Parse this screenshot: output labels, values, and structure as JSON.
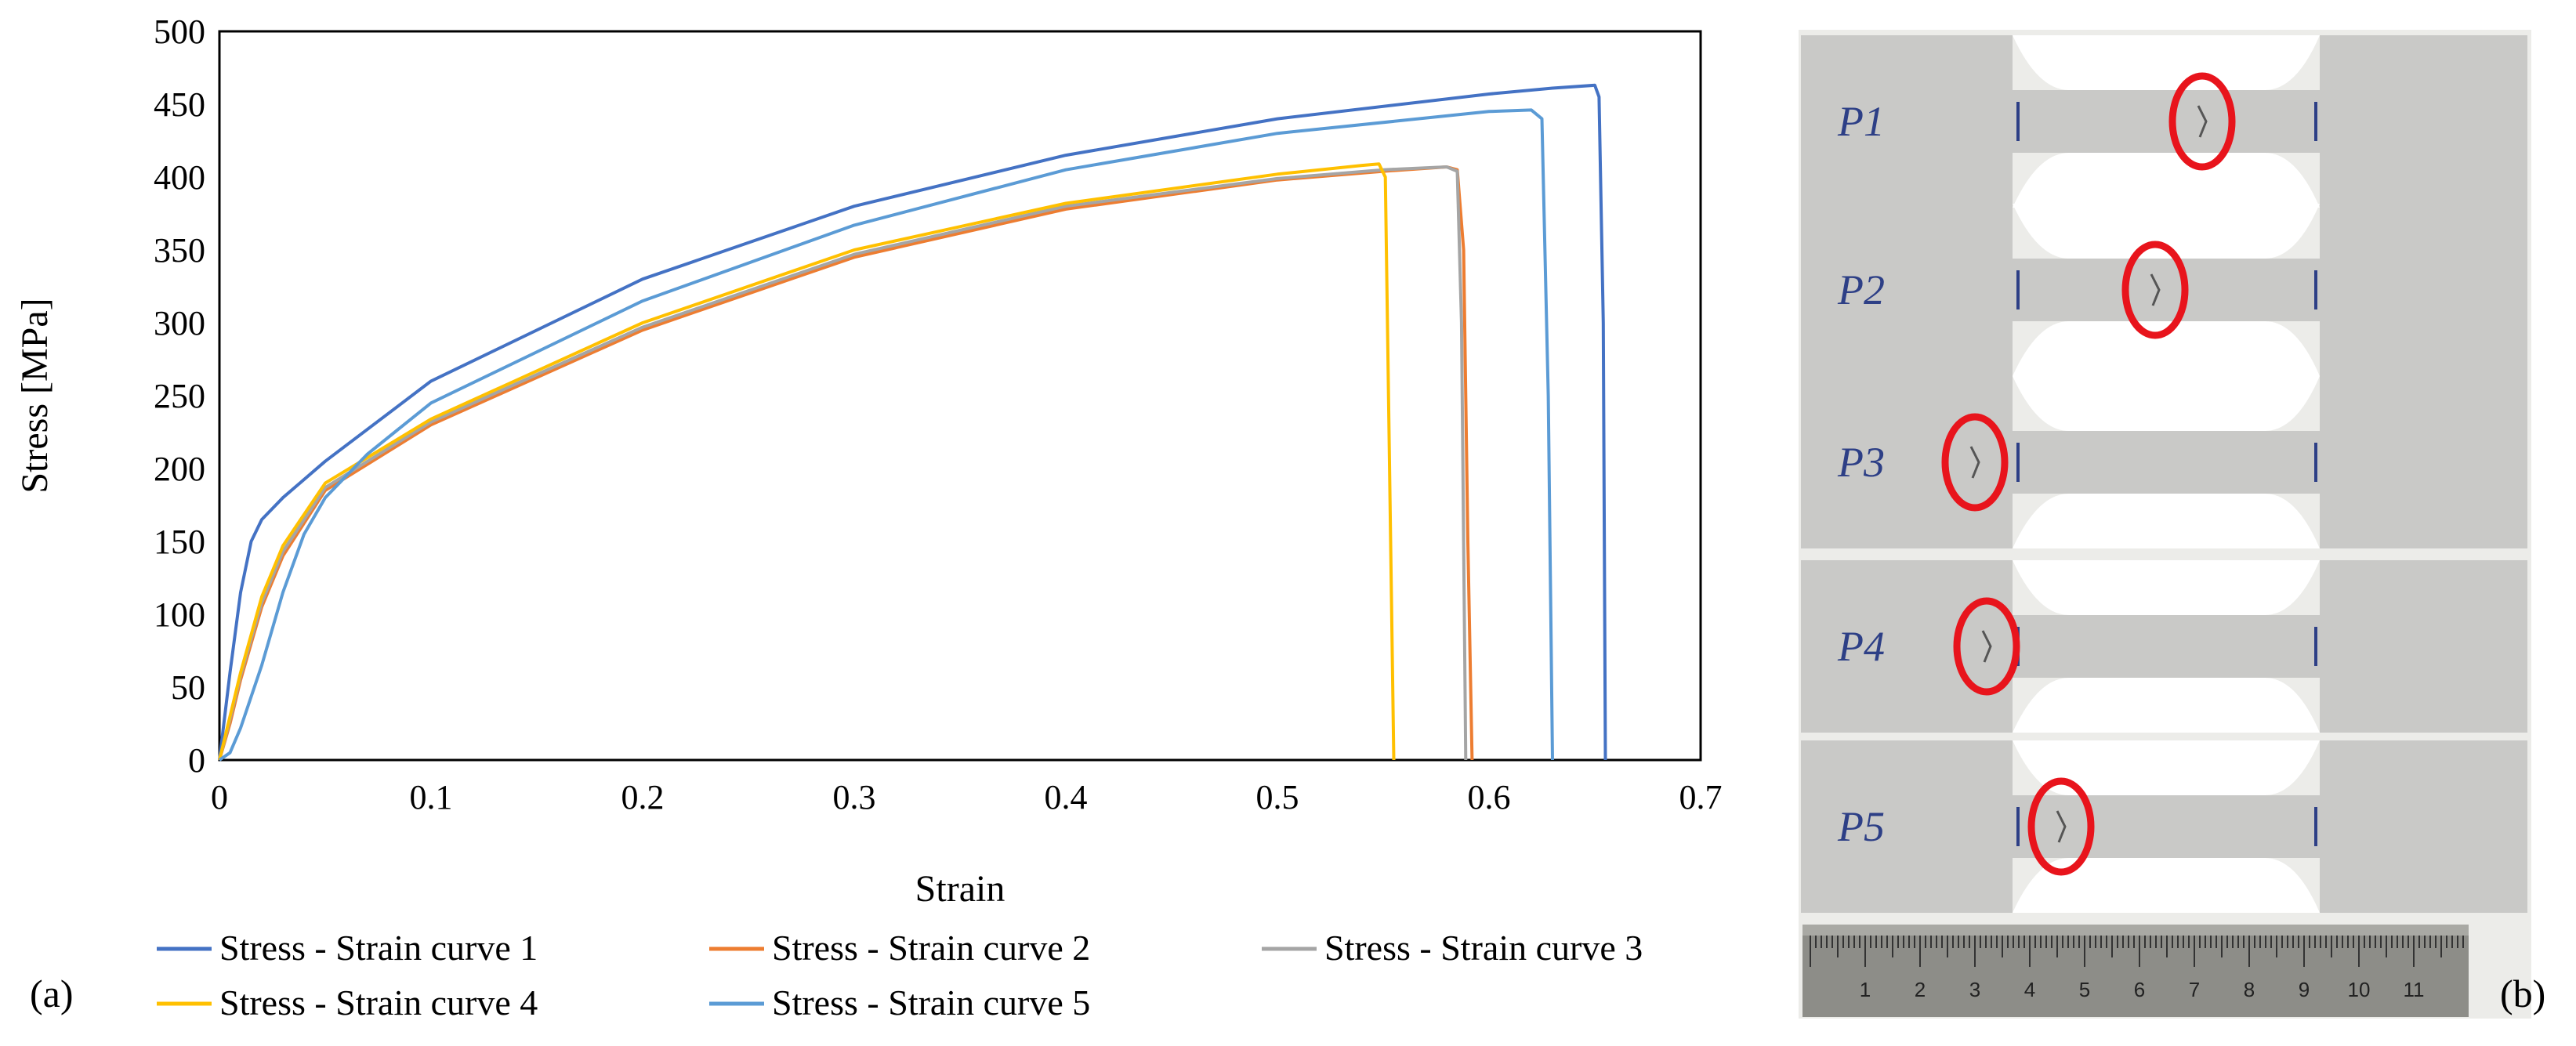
{
  "chart_data": {
    "type": "line",
    "xlabel": "Strain",
    "ylabel": "Stress [MPa]",
    "xlim": [
      0,
      0.7
    ],
    "ylim": [
      0,
      500
    ],
    "x_ticks": [
      0,
      0.1,
      0.2,
      0.3,
      0.4,
      0.5,
      0.6,
      0.7
    ],
    "x_tick_labels": [
      "0",
      "0.1",
      "0.2",
      "0.3",
      "0.4",
      "0.5",
      "0.6",
      "0.7"
    ],
    "y_ticks": [
      0,
      50,
      100,
      150,
      200,
      250,
      300,
      350,
      400,
      450,
      500
    ],
    "y_tick_labels": [
      "0",
      "50",
      "100",
      "150",
      "200",
      "250",
      "300",
      "350",
      "400",
      "450",
      "500"
    ],
    "grid": false,
    "legend_position": "bottom",
    "series": [
      {
        "name": "Stress - Strain curve 1",
        "color": "#4472C4",
        "x": [
          0,
          0.005,
          0.01,
          0.015,
          0.02,
          0.03,
          0.05,
          0.1,
          0.2,
          0.3,
          0.4,
          0.5,
          0.6,
          0.63,
          0.65,
          0.652,
          0.654,
          0.655
        ],
        "y": [
          0,
          60,
          115,
          150,
          165,
          180,
          205,
          260,
          330,
          380,
          415,
          440,
          457,
          461,
          463,
          455,
          300,
          0
        ]
      },
      {
        "name": "Stress - Strain curve 2",
        "color": "#ED7D31",
        "x": [
          0,
          0.005,
          0.01,
          0.02,
          0.03,
          0.05,
          0.1,
          0.2,
          0.3,
          0.4,
          0.5,
          0.55,
          0.58,
          0.585,
          0.588,
          0.59,
          0.592
        ],
        "y": [
          0,
          25,
          55,
          105,
          140,
          185,
          230,
          295,
          345,
          378,
          398,
          404,
          407,
          405,
          350,
          150,
          0
        ]
      },
      {
        "name": "Stress - Strain curve 3",
        "color": "#A5A5A5",
        "x": [
          0,
          0.005,
          0.01,
          0.02,
          0.03,
          0.05,
          0.1,
          0.2,
          0.3,
          0.4,
          0.5,
          0.55,
          0.58,
          0.585,
          0.587,
          0.589
        ],
        "y": [
          0,
          28,
          58,
          108,
          143,
          187,
          232,
          297,
          347,
          380,
          399,
          405,
          407,
          404,
          300,
          0
        ]
      },
      {
        "name": "Stress - Strain curve 4",
        "color": "#FFC000",
        "x": [
          0,
          0.005,
          0.01,
          0.02,
          0.03,
          0.05,
          0.1,
          0.2,
          0.3,
          0.4,
          0.5,
          0.54,
          0.548,
          0.551,
          0.553,
          0.555
        ],
        "y": [
          0,
          30,
          60,
          112,
          147,
          190,
          234,
          300,
          350,
          382,
          402,
          408,
          409,
          400,
          200,
          0
        ]
      },
      {
        "name": "Stress - Strain curve 5",
        "color": "#5B9BD5",
        "x": [
          0,
          0.005,
          0.01,
          0.02,
          0.03,
          0.04,
          0.05,
          0.07,
          0.1,
          0.2,
          0.3,
          0.4,
          0.5,
          0.6,
          0.62,
          0.625,
          0.628,
          0.63
        ],
        "y": [
          0,
          5,
          22,
          65,
          115,
          155,
          180,
          210,
          245,
          315,
          367,
          405,
          430,
          445,
          446,
          440,
          250,
          0
        ]
      }
    ],
    "panel_labels": [
      "(a)",
      "(b)"
    ]
  },
  "specimens": [
    {
      "label": "P1"
    },
    {
      "label": "P2"
    },
    {
      "label": "P3"
    },
    {
      "label": "P4"
    },
    {
      "label": "P5"
    }
  ],
  "ruler": {
    "numbers": [
      "1",
      "2",
      "3",
      "4",
      "5",
      "6",
      "7",
      "8",
      "9",
      "10",
      "11"
    ]
  },
  "colors": {
    "break_marker": "#E8141C",
    "specimen": "#c9c9c7",
    "background": "#e9e9e6"
  }
}
